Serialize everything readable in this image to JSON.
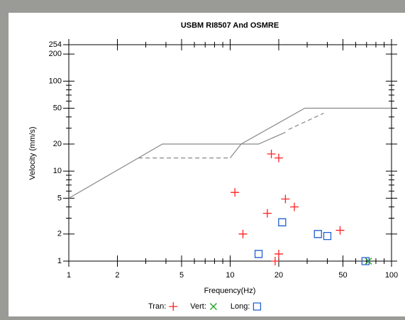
{
  "chart_data": {
    "type": "scatter",
    "title": "USBM RI8507 And OSMRE",
    "x_label": "Frequency(Hz)",
    "y_label": "Velocity (mm/s)",
    "log_x": true,
    "log_y": true,
    "xlim": [
      1,
      100
    ],
    "ylim": [
      1,
      254
    ],
    "xticks": [
      1,
      2,
      5,
      10,
      20,
      50,
      100
    ],
    "xminorticks": [
      3,
      4,
      6,
      7,
      8,
      9,
      30,
      40,
      60,
      70,
      80,
      90
    ],
    "yticks": [
      1,
      2,
      5,
      10,
      20,
      50,
      100,
      200,
      254
    ],
    "yminorticks": [
      3,
      4,
      6,
      7,
      8,
      9,
      30,
      40,
      60,
      70,
      80,
      90,
      300
    ],
    "series": [
      {
        "type": "line",
        "color": "#888888",
        "dashed": false,
        "x": [
          1,
          2.7
        ],
        "values": [
          5,
          14
        ]
      },
      {
        "type": "line",
        "color": "#888888",
        "dashed": true,
        "x": [
          2.7,
          10
        ],
        "values": [
          14,
          14
        ]
      },
      {
        "type": "line",
        "color": "#888888",
        "dashed": false,
        "x": [
          10,
          11.7,
          29,
          100
        ],
        "values": [
          14,
          20,
          50,
          50
        ]
      },
      {
        "type": "line",
        "color": "#888888",
        "dashed": false,
        "x": [
          2.7,
          3.8,
          15,
          22
        ],
        "values": [
          14,
          20,
          20,
          27
        ]
      },
      {
        "type": "line",
        "color": "#888888",
        "dashed": true,
        "x": [
          23,
          38
        ],
        "values": [
          29,
          44
        ]
      },
      {
        "type": "plus",
        "name": "Tran:",
        "color": "#ff2020",
        "x": [
          18,
          20,
          10.7,
          22,
          25,
          17,
          12,
          20,
          19,
          48
        ],
        "values": [
          15.5,
          14,
          5.8,
          4.9,
          4,
          3.4,
          2,
          1.2,
          1,
          2.2
        ]
      },
      {
        "type": "cross",
        "name": "Vert:",
        "color": "#20a020",
        "x": [
          72
        ],
        "values": [
          1
        ]
      },
      {
        "type": "square",
        "name": "Long:",
        "color": "#2060d0",
        "x": [
          15,
          21,
          35,
          40,
          69
        ],
        "values": [
          1.2,
          2.7,
          2,
          1.9,
          1
        ]
      }
    ]
  }
}
